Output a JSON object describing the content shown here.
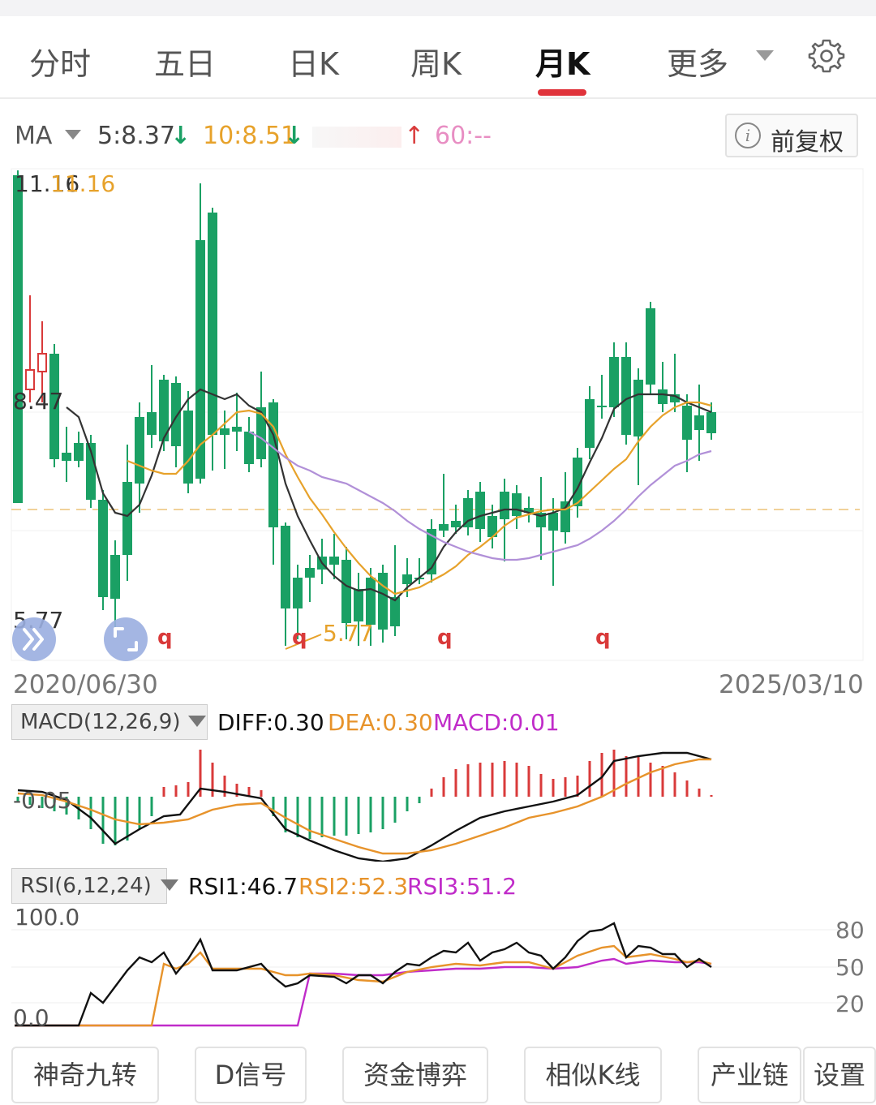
{
  "tabs": [
    {
      "label": "分时",
      "active": false
    },
    {
      "label": "五日",
      "active": false
    },
    {
      "label": "日K",
      "active": false
    },
    {
      "label": "周K",
      "active": false
    },
    {
      "label": "月K",
      "active": true
    },
    {
      "label": "更多",
      "active": false
    }
  ],
  "ma": {
    "label": "MA",
    "ma5": "5:8.37",
    "ma10": "10:8.51",
    "ma60": "60:--",
    "arrow_down": "↓",
    "arrow_up": "↑",
    "colors": {
      "ma5": "#333333",
      "ma10": "#e7a22b",
      "ma20": "#9b59b6",
      "ma60": "#e88ec3"
    }
  },
  "fuquan_button": {
    "label": "前复权",
    "icon": "info-icon"
  },
  "main_chart": {
    "high_label": "11.16",
    "high_marker": "11.16",
    "mid_label": "8.47",
    "low_label": "5.77",
    "low_marker": "5.77",
    "start_date": "2020/06/30",
    "end_date": "2025/03/10",
    "q_markers": [
      "q",
      "q",
      "q",
      "q"
    ],
    "colors": {
      "up": "#d93a3a",
      "down": "#1aa064"
    }
  },
  "macd": {
    "selector": "MACD(12,26,9)",
    "diff": "DIFF:0.30",
    "dea": "DEA:0.30",
    "macd": "MACD:0.01",
    "axis_label": "-0.05",
    "colors": {
      "diff": "#111111",
      "dea": "#e7932b",
      "macd": "#c02cc9"
    }
  },
  "rsi": {
    "selector": "RSI(6,12,24)",
    "rsi1": "RSI1:46.7",
    "rsi2": "RSI2:52.3",
    "rsi3": "RSI3:51.2",
    "top_label": "100.0",
    "bottom_label": "0.0",
    "level_80": "80",
    "level_50": "50",
    "level_20": "20",
    "colors": {
      "rsi1": "#111111",
      "rsi2": "#e7932b",
      "rsi3": "#c02cc9"
    }
  },
  "bottom_buttons": [
    "神奇九转",
    "D信号",
    "资金博弈",
    "相似K线",
    "产业链",
    "设置"
  ]
}
